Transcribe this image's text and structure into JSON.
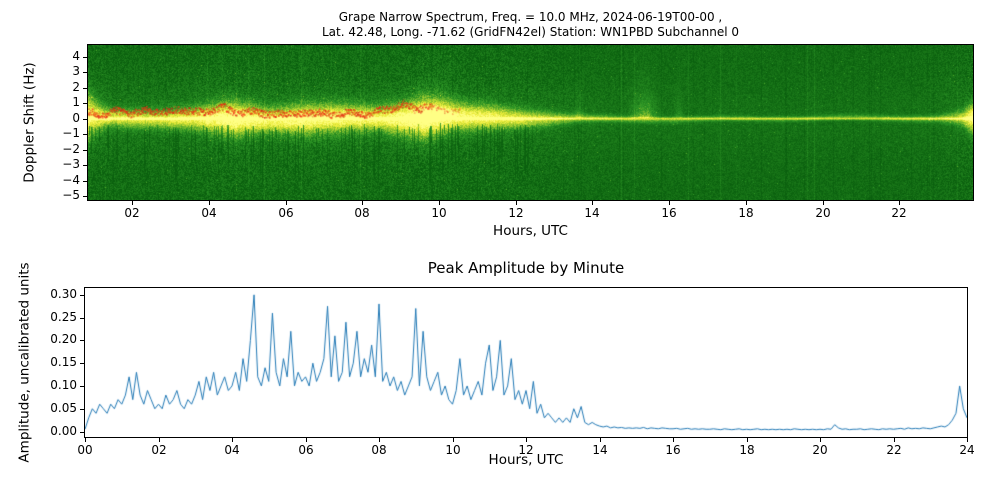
{
  "figure": {
    "background": "#ffffff"
  },
  "chart_data": [
    {
      "type": "heatmap",
      "name": "doppler-spectrogram",
      "title_line1": "Grape Narrow Spectrum, Freq. = 10.0 MHz, 2024-06-19T00-00 ,",
      "title_line2": "Lat.  42.48, Long. -71.62 (GridFN42el) Station: WN1PBD Subchannel 0",
      "xlabel": "Hours, UTC",
      "ylabel": "Doppler Shift (Hz)",
      "xlim": [
        0.85,
        23.92
      ],
      "ylim": [
        -5.25,
        4.75
      ],
      "xticks": {
        "values": [
          2,
          4,
          6,
          8,
          10,
          12,
          14,
          16,
          18,
          20,
          22
        ],
        "labels": [
          "02",
          "04",
          "06",
          "08",
          "10",
          "12",
          "14",
          "16",
          "18",
          "20",
          "22"
        ]
      },
      "yticks": {
        "values": [
          4,
          3,
          2,
          1,
          0,
          -1,
          -2,
          -3,
          -4,
          -5
        ],
        "labels": [
          "4",
          "3",
          "2",
          "1",
          "0",
          "−1",
          "−2",
          "−3",
          "−4",
          "−5"
        ]
      },
      "colors": {
        "low": "#0a5f0e",
        "mid": "#2d9626",
        "high": "#8cc32e",
        "peak": "#ebeb37",
        "hot": "#ffff85",
        "trace": "#e03218"
      },
      "band": {
        "center_hz": 0,
        "envelope": [
          [
            0.85,
            0.62
          ],
          [
            1.5,
            0.5
          ],
          [
            2.5,
            0.5
          ],
          [
            3.5,
            0.55
          ],
          [
            4.6,
            0.72
          ],
          [
            5.5,
            0.6
          ],
          [
            6.5,
            0.66
          ],
          [
            7.5,
            0.64
          ],
          [
            8.5,
            0.6
          ],
          [
            9.6,
            0.78
          ],
          [
            10.5,
            0.64
          ],
          [
            11.5,
            0.58
          ],
          [
            12.3,
            0.5
          ],
          [
            13.0,
            0.4
          ],
          [
            13.7,
            0.3
          ],
          [
            14.5,
            0.26
          ],
          [
            16.0,
            0.22
          ],
          [
            18.0,
            0.2
          ],
          [
            20.0,
            0.2
          ],
          [
            22.0,
            0.22
          ],
          [
            23.0,
            0.27
          ],
          [
            23.6,
            0.42
          ],
          [
            23.92,
            0.66
          ]
        ]
      },
      "trace_points": [
        [
          0.85,
          0.45
        ],
        [
          1.2,
          0.3
        ],
        [
          1.6,
          0.55
        ],
        [
          2.0,
          0.35
        ],
        [
          2.4,
          0.6
        ],
        [
          2.8,
          0.4
        ],
        [
          3.2,
          0.65
        ],
        [
          3.6,
          0.45
        ],
        [
          4.0,
          0.55
        ],
        [
          4.4,
          0.75
        ],
        [
          4.8,
          0.35
        ],
        [
          5.2,
          0.55
        ],
        [
          5.6,
          0.25
        ],
        [
          6.0,
          0.45
        ],
        [
          6.4,
          0.3
        ],
        [
          6.8,
          0.5
        ],
        [
          7.2,
          0.25
        ],
        [
          7.6,
          0.45
        ],
        [
          8.0,
          0.3
        ],
        [
          8.4,
          0.5
        ],
        [
          8.8,
          0.7
        ],
        [
          9.1,
          1.0
        ],
        [
          9.4,
          0.6
        ],
        [
          9.7,
          0.85
        ],
        [
          10.0,
          0.6
        ],
        [
          10.3,
          0.45
        ],
        [
          10.6,
          0.5
        ]
      ]
    },
    {
      "type": "line",
      "name": "peak-amplitude",
      "title": "Peak Amplitude by Minute",
      "xlabel": "Hours, UTC",
      "ylabel": "Amplitude, uncalibrated units",
      "line_color": "#1f77b4",
      "xlim": [
        0,
        24
      ],
      "ylim": [
        -0.012,
        0.315
      ],
      "xticks": {
        "values": [
          0,
          2,
          4,
          6,
          8,
          10,
          12,
          14,
          16,
          18,
          20,
          22,
          24
        ],
        "labels": [
          "00",
          "02",
          "04",
          "06",
          "08",
          "10",
          "12",
          "14",
          "16",
          "18",
          "20",
          "22",
          "24"
        ]
      },
      "yticks": {
        "values": [
          0,
          0.05,
          0.1,
          0.15,
          0.2,
          0.25,
          0.3
        ],
        "labels": [
          "0.00",
          "0.05",
          "0.10",
          "0.15",
          "0.20",
          "0.25",
          "0.30"
        ]
      },
      "x_start": 0,
      "x_step_hours": 0.1,
      "values": [
        0.005,
        0.03,
        0.05,
        0.04,
        0.06,
        0.05,
        0.04,
        0.06,
        0.05,
        0.07,
        0.06,
        0.08,
        0.12,
        0.07,
        0.13,
        0.08,
        0.06,
        0.09,
        0.07,
        0.05,
        0.06,
        0.05,
        0.08,
        0.06,
        0.07,
        0.09,
        0.06,
        0.05,
        0.07,
        0.06,
        0.08,
        0.11,
        0.07,
        0.12,
        0.09,
        0.13,
        0.08,
        0.1,
        0.12,
        0.09,
        0.1,
        0.13,
        0.09,
        0.16,
        0.11,
        0.2,
        0.3,
        0.12,
        0.1,
        0.14,
        0.11,
        0.26,
        0.13,
        0.1,
        0.16,
        0.12,
        0.22,
        0.1,
        0.13,
        0.11,
        0.12,
        0.1,
        0.15,
        0.11,
        0.13,
        0.16,
        0.275,
        0.12,
        0.21,
        0.11,
        0.13,
        0.24,
        0.12,
        0.15,
        0.22,
        0.12,
        0.16,
        0.13,
        0.19,
        0.12,
        0.28,
        0.11,
        0.13,
        0.1,
        0.12,
        0.09,
        0.11,
        0.08,
        0.1,
        0.12,
        0.27,
        0.1,
        0.22,
        0.12,
        0.09,
        0.11,
        0.13,
        0.08,
        0.1,
        0.07,
        0.06,
        0.09,
        0.16,
        0.08,
        0.1,
        0.07,
        0.09,
        0.11,
        0.08,
        0.15,
        0.19,
        0.09,
        0.12,
        0.2,
        0.08,
        0.1,
        0.16,
        0.07,
        0.09,
        0.06,
        0.09,
        0.05,
        0.11,
        0.04,
        0.06,
        0.03,
        0.04,
        0.03,
        0.02,
        0.03,
        0.02,
        0.03,
        0.02,
        0.05,
        0.03,
        0.055,
        0.02,
        0.015,
        0.02,
        0.015,
        0.012,
        0.01,
        0.012,
        0.008,
        0.01,
        0.008,
        0.009,
        0.007,
        0.008,
        0.007,
        0.008,
        0.007,
        0.009,
        0.006,
        0.008,
        0.007,
        0.006,
        0.008,
        0.007,
        0.006,
        0.006,
        0.007,
        0.005,
        0.006,
        0.007,
        0.005,
        0.006,
        0.005,
        0.006,
        0.005,
        0.005,
        0.006,
        0.005,
        0.004,
        0.006,
        0.005,
        0.004,
        0.005,
        0.006,
        0.004,
        0.005,
        0.004,
        0.005,
        0.006,
        0.004,
        0.005,
        0.004,
        0.005,
        0.004,
        0.005,
        0.004,
        0.005,
        0.004,
        0.006,
        0.005,
        0.004,
        0.005,
        0.004,
        0.005,
        0.004,
        0.005,
        0.004,
        0.006,
        0.005,
        0.015,
        0.008,
        0.005,
        0.006,
        0.004,
        0.005,
        0.005,
        0.006,
        0.004,
        0.005,
        0.006,
        0.005,
        0.004,
        0.006,
        0.005,
        0.006,
        0.005,
        0.006,
        0.007,
        0.005,
        0.008,
        0.006,
        0.007,
        0.006,
        0.008,
        0.007,
        0.006,
        0.008,
        0.01,
        0.012,
        0.01,
        0.015,
        0.025,
        0.04,
        0.1,
        0.05,
        0.03
      ]
    }
  ]
}
